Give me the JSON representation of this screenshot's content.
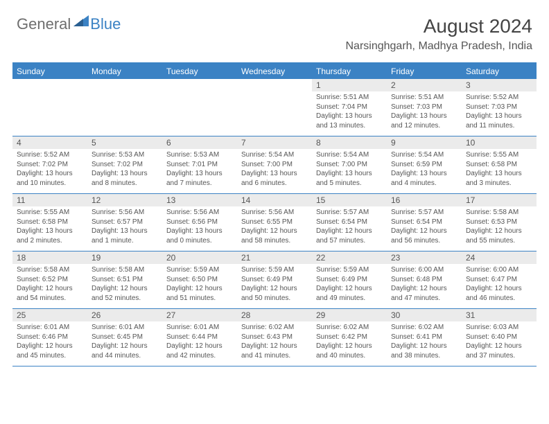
{
  "logo": {
    "text1": "General",
    "text2": "Blue"
  },
  "title": "August 2024",
  "location": "Narsinghgarh, Madhya Pradesh, India",
  "colors": {
    "header_bar": "#3b82c4",
    "daynum_bg": "#ebebeb",
    "text": "#555555",
    "logo_gray": "#6e6e6e"
  },
  "days_of_week": [
    "Sunday",
    "Monday",
    "Tuesday",
    "Wednesday",
    "Thursday",
    "Friday",
    "Saturday"
  ],
  "weeks": [
    [
      null,
      null,
      null,
      null,
      {
        "n": "1",
        "sr": "Sunrise: 5:51 AM",
        "ss": "Sunset: 7:04 PM",
        "dl": "Daylight: 13 hours and 13 minutes."
      },
      {
        "n": "2",
        "sr": "Sunrise: 5:51 AM",
        "ss": "Sunset: 7:03 PM",
        "dl": "Daylight: 13 hours and 12 minutes."
      },
      {
        "n": "3",
        "sr": "Sunrise: 5:52 AM",
        "ss": "Sunset: 7:03 PM",
        "dl": "Daylight: 13 hours and 11 minutes."
      }
    ],
    [
      {
        "n": "4",
        "sr": "Sunrise: 5:52 AM",
        "ss": "Sunset: 7:02 PM",
        "dl": "Daylight: 13 hours and 10 minutes."
      },
      {
        "n": "5",
        "sr": "Sunrise: 5:53 AM",
        "ss": "Sunset: 7:02 PM",
        "dl": "Daylight: 13 hours and 8 minutes."
      },
      {
        "n": "6",
        "sr": "Sunrise: 5:53 AM",
        "ss": "Sunset: 7:01 PM",
        "dl": "Daylight: 13 hours and 7 minutes."
      },
      {
        "n": "7",
        "sr": "Sunrise: 5:54 AM",
        "ss": "Sunset: 7:00 PM",
        "dl": "Daylight: 13 hours and 6 minutes."
      },
      {
        "n": "8",
        "sr": "Sunrise: 5:54 AM",
        "ss": "Sunset: 7:00 PM",
        "dl": "Daylight: 13 hours and 5 minutes."
      },
      {
        "n": "9",
        "sr": "Sunrise: 5:54 AM",
        "ss": "Sunset: 6:59 PM",
        "dl": "Daylight: 13 hours and 4 minutes."
      },
      {
        "n": "10",
        "sr": "Sunrise: 5:55 AM",
        "ss": "Sunset: 6:58 PM",
        "dl": "Daylight: 13 hours and 3 minutes."
      }
    ],
    [
      {
        "n": "11",
        "sr": "Sunrise: 5:55 AM",
        "ss": "Sunset: 6:58 PM",
        "dl": "Daylight: 13 hours and 2 minutes."
      },
      {
        "n": "12",
        "sr": "Sunrise: 5:56 AM",
        "ss": "Sunset: 6:57 PM",
        "dl": "Daylight: 13 hours and 1 minute."
      },
      {
        "n": "13",
        "sr": "Sunrise: 5:56 AM",
        "ss": "Sunset: 6:56 PM",
        "dl": "Daylight: 13 hours and 0 minutes."
      },
      {
        "n": "14",
        "sr": "Sunrise: 5:56 AM",
        "ss": "Sunset: 6:55 PM",
        "dl": "Daylight: 12 hours and 58 minutes."
      },
      {
        "n": "15",
        "sr": "Sunrise: 5:57 AM",
        "ss": "Sunset: 6:54 PM",
        "dl": "Daylight: 12 hours and 57 minutes."
      },
      {
        "n": "16",
        "sr": "Sunrise: 5:57 AM",
        "ss": "Sunset: 6:54 PM",
        "dl": "Daylight: 12 hours and 56 minutes."
      },
      {
        "n": "17",
        "sr": "Sunrise: 5:58 AM",
        "ss": "Sunset: 6:53 PM",
        "dl": "Daylight: 12 hours and 55 minutes."
      }
    ],
    [
      {
        "n": "18",
        "sr": "Sunrise: 5:58 AM",
        "ss": "Sunset: 6:52 PM",
        "dl": "Daylight: 12 hours and 54 minutes."
      },
      {
        "n": "19",
        "sr": "Sunrise: 5:58 AM",
        "ss": "Sunset: 6:51 PM",
        "dl": "Daylight: 12 hours and 52 minutes."
      },
      {
        "n": "20",
        "sr": "Sunrise: 5:59 AM",
        "ss": "Sunset: 6:50 PM",
        "dl": "Daylight: 12 hours and 51 minutes."
      },
      {
        "n": "21",
        "sr": "Sunrise: 5:59 AM",
        "ss": "Sunset: 6:49 PM",
        "dl": "Daylight: 12 hours and 50 minutes."
      },
      {
        "n": "22",
        "sr": "Sunrise: 5:59 AM",
        "ss": "Sunset: 6:49 PM",
        "dl": "Daylight: 12 hours and 49 minutes."
      },
      {
        "n": "23",
        "sr": "Sunrise: 6:00 AM",
        "ss": "Sunset: 6:48 PM",
        "dl": "Daylight: 12 hours and 47 minutes."
      },
      {
        "n": "24",
        "sr": "Sunrise: 6:00 AM",
        "ss": "Sunset: 6:47 PM",
        "dl": "Daylight: 12 hours and 46 minutes."
      }
    ],
    [
      {
        "n": "25",
        "sr": "Sunrise: 6:01 AM",
        "ss": "Sunset: 6:46 PM",
        "dl": "Daylight: 12 hours and 45 minutes."
      },
      {
        "n": "26",
        "sr": "Sunrise: 6:01 AM",
        "ss": "Sunset: 6:45 PM",
        "dl": "Daylight: 12 hours and 44 minutes."
      },
      {
        "n": "27",
        "sr": "Sunrise: 6:01 AM",
        "ss": "Sunset: 6:44 PM",
        "dl": "Daylight: 12 hours and 42 minutes."
      },
      {
        "n": "28",
        "sr": "Sunrise: 6:02 AM",
        "ss": "Sunset: 6:43 PM",
        "dl": "Daylight: 12 hours and 41 minutes."
      },
      {
        "n": "29",
        "sr": "Sunrise: 6:02 AM",
        "ss": "Sunset: 6:42 PM",
        "dl": "Daylight: 12 hours and 40 minutes."
      },
      {
        "n": "30",
        "sr": "Sunrise: 6:02 AM",
        "ss": "Sunset: 6:41 PM",
        "dl": "Daylight: 12 hours and 38 minutes."
      },
      {
        "n": "31",
        "sr": "Sunrise: 6:03 AM",
        "ss": "Sunset: 6:40 PM",
        "dl": "Daylight: 12 hours and 37 minutes."
      }
    ]
  ]
}
